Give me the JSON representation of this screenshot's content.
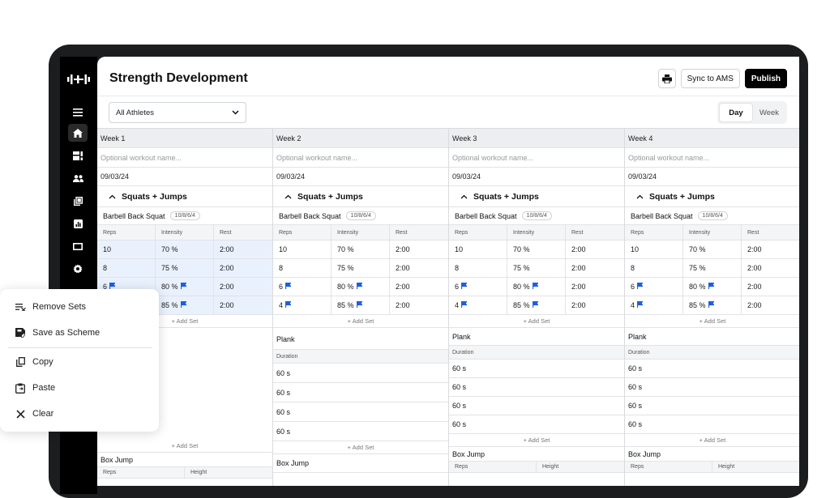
{
  "app": {
    "title": "Strength Development",
    "sync_label": "Sync to AMS",
    "publish_label": "Publish",
    "athlete_select": "All Athletes",
    "view_toggle": [
      "Day",
      "Week"
    ],
    "view_active": "Day"
  },
  "rail_icons": [
    "logo-icon",
    "menu-icon",
    "home-icon",
    "dashboard-icon",
    "group-icon",
    "library-icon",
    "chart-icon",
    "screen-icon",
    "settings-icon"
  ],
  "weeks": [
    {
      "label": "Week 1",
      "name_placeholder": "Optional workout name...",
      "date": "09/03/24"
    },
    {
      "label": "Week 2",
      "name_placeholder": "Optional workout name...",
      "date": "09/03/24"
    },
    {
      "label": "Week 3",
      "name_placeholder": "Optional workout name...",
      "date": "09/03/24"
    },
    {
      "label": "Week 4",
      "name_placeholder": "Optional workout name...",
      "date": "09/03/24"
    }
  ],
  "block": {
    "title": "Squats + Jumps",
    "exercise": "Barbell Back Squat",
    "scheme": "10/8/6/4",
    "headers": [
      "Reps",
      "Intensity",
      "Rest"
    ],
    "sets": [
      {
        "reps": "10",
        "intensity": "70 %",
        "rest": "2:00"
      },
      {
        "reps": "8",
        "intensity": "75 %",
        "rest": "2:00"
      },
      {
        "reps": "6",
        "intensity": "80 %",
        "rest": "2:00"
      },
      {
        "reps": "4",
        "intensity": "85 %",
        "rest": "2:00"
      }
    ],
    "add_set": "+ Add Set",
    "plank": "Plank",
    "duration_label": "Duration",
    "durations": [
      "60 s",
      "60 s",
      "60 s",
      "60 s"
    ],
    "box_jump": "Box Jump",
    "box_headers": [
      "Reps",
      "Height"
    ]
  },
  "context_menu": [
    {
      "label": "Remove Sets",
      "icon": "remove-sets-icon"
    },
    {
      "label": "Save as Scheme",
      "icon": "save-scheme-icon"
    },
    {
      "label": "Copy",
      "icon": "copy-icon"
    },
    {
      "label": "Paste",
      "icon": "paste-icon"
    },
    {
      "label": "Clear",
      "icon": "clear-icon"
    }
  ],
  "colors": {
    "accent": "#1d5fe0",
    "selected_row": "#e9f1fd",
    "rail": "#000000"
  }
}
